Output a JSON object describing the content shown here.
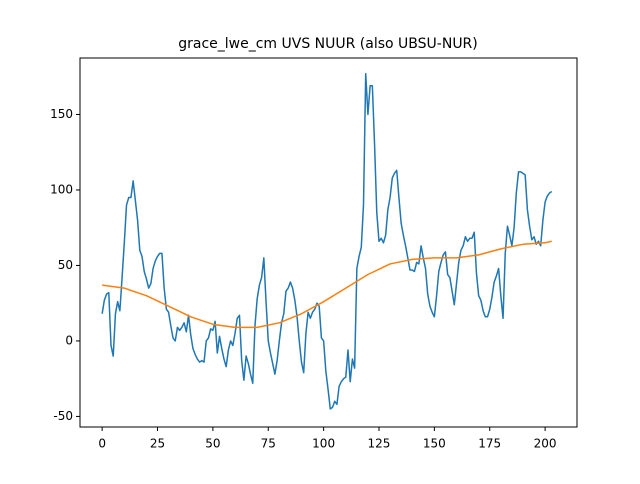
{
  "chart_data": {
    "type": "line",
    "title": "grace_lwe_cm UVS NUUR (also UBSU-NUR)",
    "xlim": [
      -10,
      214.4
    ],
    "ylim": [
      -57,
      187.4
    ],
    "xticks": [
      0,
      25,
      50,
      75,
      100,
      125,
      150,
      175,
      200
    ],
    "yticks": [
      -50,
      0,
      50,
      100,
      150
    ],
    "series": [
      {
        "color": "#1f77b4",
        "x": [
          0,
          1,
          2,
          3,
          4,
          5,
          6,
          7,
          8,
          9,
          10,
          11,
          12,
          13,
          14,
          15,
          16,
          17,
          18,
          19,
          20,
          21,
          22,
          23,
          24,
          25,
          26,
          27,
          28,
          29,
          30,
          31,
          32,
          33,
          34,
          35,
          36,
          37,
          38,
          39,
          40,
          41,
          42,
          43,
          44,
          45,
          46,
          47,
          48,
          49,
          50,
          51,
          52,
          53,
          54,
          55,
          56,
          57,
          58,
          59,
          60,
          61,
          62,
          63,
          64,
          65,
          66,
          67,
          68,
          69,
          70,
          71,
          72,
          73,
          74,
          75,
          76,
          77,
          78,
          79,
          80,
          81,
          82,
          83,
          84,
          85,
          86,
          87,
          88,
          89,
          90,
          91,
          92,
          93,
          94,
          95,
          96,
          97,
          98,
          99,
          100,
          101,
          102,
          103,
          104,
          105,
          106,
          107,
          108,
          109,
          110,
          111,
          112,
          113,
          114,
          115,
          116,
          117,
          118,
          119,
          120,
          121,
          122,
          123,
          124,
          125,
          126,
          127,
          128,
          129,
          130,
          131,
          132,
          133,
          134,
          135,
          136,
          137,
          138,
          139,
          140,
          141,
          142,
          143,
          144,
          145,
          146,
          147,
          148,
          149,
          150,
          151,
          152,
          153,
          154,
          155,
          156,
          157,
          158,
          159,
          160,
          161,
          162,
          163,
          164,
          165,
          166,
          167,
          168,
          169,
          170,
          171,
          172,
          173,
          174,
          175,
          176,
          177,
          178,
          179,
          180,
          181,
          182,
          183,
          184,
          185,
          186,
          187,
          188,
          189,
          190,
          191,
          192,
          193,
          194,
          195,
          196,
          197,
          198,
          199,
          200,
          201,
          202,
          203
        ],
        "values": [
          18,
          27,
          31,
          32,
          -3,
          -10,
          18,
          26,
          20,
          42,
          65,
          90,
          95,
          95,
          106,
          93,
          80,
          60,
          56,
          46,
          41,
          35,
          38,
          48,
          53,
          56,
          58,
          58,
          35,
          21,
          19,
          10,
          2,
          0,
          9,
          7,
          9,
          12,
          6,
          17,
          4,
          -5,
          -9,
          -12,
          -14,
          -13,
          -14,
          0,
          2,
          8,
          7,
          13,
          -8,
          3,
          -5,
          -12,
          -17,
          -6,
          0,
          -3,
          5,
          15,
          17,
          -13,
          -26,
          -10,
          -15,
          -22,
          -28,
          10,
          28,
          37,
          42,
          55,
          26,
          0,
          -8,
          -15,
          -22,
          -13,
          0,
          12,
          18,
          33,
          35,
          39,
          35,
          27,
          16,
          0,
          -14,
          -21,
          5,
          19,
          15,
          19,
          21,
          25,
          23,
          2,
          0,
          -20,
          -32,
          -45,
          -44,
          -40,
          -42,
          -30,
          -27,
          -25,
          -24,
          -6,
          -27,
          -12,
          -18,
          48,
          56,
          62,
          90,
          177,
          150,
          169,
          169,
          130,
          85,
          66,
          68,
          65,
          70,
          87,
          95,
          108,
          111,
          113,
          95,
          78,
          70,
          63,
          55,
          47,
          47,
          46,
          52,
          51,
          63,
          55,
          48,
          31,
          23,
          19,
          16,
          30,
          46,
          52,
          57,
          59,
          44,
          42,
          33,
          24,
          38,
          52,
          60,
          63,
          69,
          66,
          68,
          68,
          72,
          45,
          30,
          27,
          20,
          16,
          16,
          21,
          29,
          39,
          43,
          48,
          30,
          15,
          58,
          76,
          70,
          63,
          75,
          98,
          112,
          112,
          111,
          110,
          87,
          76,
          67,
          69,
          64,
          66,
          63,
          80,
          92,
          96,
          98,
          99
        ]
      },
      {
        "color": "#ff7f0e",
        "x": [
          0,
          10,
          20,
          30,
          40,
          50,
          60,
          70,
          80,
          90,
          100,
          110,
          120,
          130,
          140,
          150,
          160,
          170,
          180,
          190,
          200,
          203
        ],
        "values": [
          37,
          35,
          30,
          23,
          16,
          11,
          9,
          9,
          12,
          18,
          26,
          35,
          44,
          51,
          54,
          55,
          55,
          57,
          61,
          64,
          65,
          66
        ]
      }
    ]
  }
}
